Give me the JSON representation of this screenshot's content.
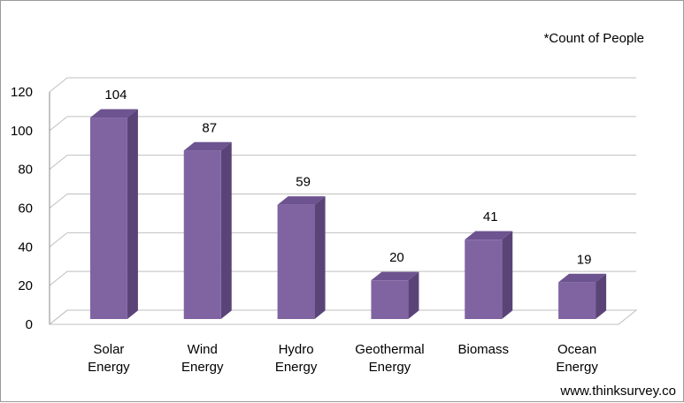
{
  "chart_data": {
    "type": "bar",
    "categories": [
      [
        "Solar",
        "Energy"
      ],
      [
        "Wind",
        "Energy"
      ],
      [
        "Hydro",
        "Energy"
      ],
      [
        "Geothermal",
        "Energy"
      ],
      [
        "Biomass"
      ],
      [
        "Ocean",
        "Energy"
      ]
    ],
    "values": [
      104,
      87,
      59,
      20,
      41,
      19
    ],
    "ylim": [
      0,
      120
    ],
    "yticks": [
      "0",
      "20",
      "40",
      "60",
      "80",
      "100",
      "120"
    ],
    "grid": true,
    "annotation": "*Count of People",
    "colors": {
      "front": "#8064a2",
      "side": "#5a4477",
      "top": "#6d5490",
      "grid": "#bfbfbf",
      "axis": "#888888"
    }
  },
  "footer": {
    "credit": "www.thinksurvey.co"
  }
}
